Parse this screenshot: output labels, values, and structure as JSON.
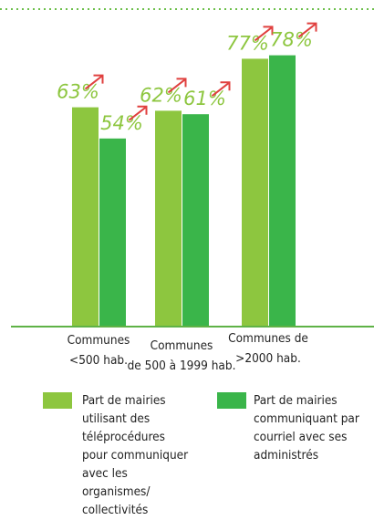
{
  "chart_data": {
    "type": "bar",
    "categories": [
      "Communes\n<500 hab.",
      "Communes\nde 500 à 1999 hab.",
      "Communes de\n>2000 hab."
    ],
    "series": [
      {
        "name": "Part de mairies utilisant des téléprocédures pour communiquer avec les organismes/ collectivités",
        "color": "#8dc63f",
        "values": [
          63,
          62,
          77
        ],
        "value_labels": [
          "63%",
          "62%",
          "77%"
        ]
      },
      {
        "name": "Part de mairies communiquant par courriel avec ses administrés",
        "color": "#3ab54a",
        "values": [
          54,
          61,
          78
        ],
        "value_labels": [
          "54%",
          "61%",
          "78%"
        ]
      }
    ]
  }
}
